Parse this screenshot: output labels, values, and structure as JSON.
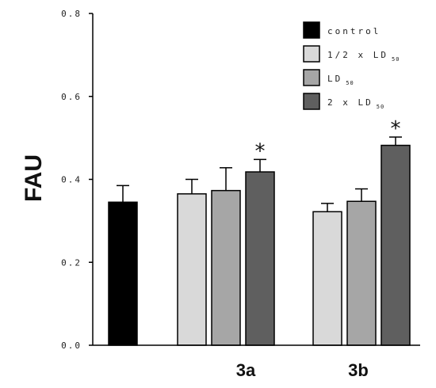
{
  "chart_data": {
    "type": "bar",
    "ylabel": "FAU",
    "xlabel": "",
    "ylim": [
      0,
      0.8
    ],
    "yticks": [
      "0.0",
      "0.2",
      "0.4",
      "0.6",
      "0.8"
    ],
    "grid": false,
    "legend_position": "top-right",
    "series": [
      {
        "name": "control",
        "sub": "",
        "color": "#000000"
      },
      {
        "name": "1/2 x LD",
        "sub": "50",
        "color": "#d9d9d9"
      },
      {
        "name": "LD",
        "sub": "50",
        "color": "#a6a6a6"
      },
      {
        "name": "2 x LD",
        "sub": "50",
        "color": "#5f5f5f"
      }
    ],
    "groups": [
      {
        "label": "",
        "bars": [
          {
            "series": 0,
            "value": 0.345,
            "error": 0.04,
            "significant": false
          }
        ]
      },
      {
        "label": "3a",
        "bars": [
          {
            "series": 1,
            "value": 0.365,
            "error": 0.035,
            "significant": false
          },
          {
            "series": 2,
            "value": 0.373,
            "error": 0.055,
            "significant": false
          },
          {
            "series": 3,
            "value": 0.418,
            "error": 0.03,
            "significant": true
          }
        ]
      },
      {
        "label": "3b",
        "bars": [
          {
            "series": 1,
            "value": 0.322,
            "error": 0.02,
            "significant": false
          },
          {
            "series": 2,
            "value": 0.347,
            "error": 0.03,
            "significant": false
          },
          {
            "series": 3,
            "value": 0.482,
            "error": 0.02,
            "significant": true
          }
        ]
      }
    ],
    "significance_marker": "*"
  }
}
